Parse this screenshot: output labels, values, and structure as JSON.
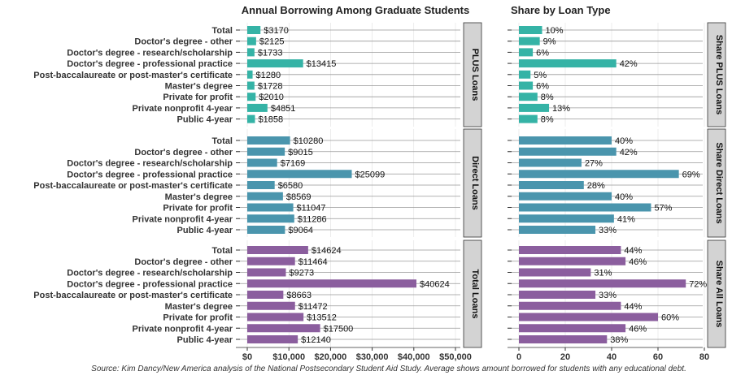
{
  "chart_data": [
    {
      "type": "bar",
      "orientation": "horizontal",
      "title": "Annual Borrowing Among Graduate Students",
      "categories": [
        "Total",
        "Doctor's degree - other",
        "Doctor's degree - research/scholarship",
        "Doctor's degree - professional practice",
        "Post-baccalaureate or post-master's certificate",
        "Master's degree",
        "Private for profit",
        "Private nonprofit 4-year",
        "Public 4-year"
      ],
      "series": [
        {
          "name": "PLUS Loans",
          "color": "#35b3a6",
          "values": [
            3170,
            2125,
            1733,
            13415,
            1280,
            1728,
            2010,
            4851,
            1858
          ],
          "labels": [
            "$3170",
            "$2125",
            "$1733",
            "$13415",
            "$1280",
            "$1728",
            "$2010",
            "$4851",
            "$1858"
          ]
        },
        {
          "name": "Direct Loans",
          "color": "#4a95ad",
          "values": [
            10280,
            9015,
            7169,
            25099,
            6580,
            8569,
            11047,
            11286,
            9064
          ],
          "labels": [
            "$10280",
            "$9015",
            "$7169",
            "$25099",
            "$6580",
            "$8569",
            "$11047",
            "$11286",
            "$9064"
          ]
        },
        {
          "name": "Total Loans",
          "color": "#8b5e9e",
          "values": [
            14624,
            11464,
            9273,
            40624,
            8663,
            11472,
            13512,
            17500,
            12140
          ],
          "labels": [
            "$14624",
            "$11464",
            "$9273",
            "$40624",
            "$8663",
            "$11472",
            "$13512",
            "$17500",
            "$12140"
          ]
        }
      ],
      "xlim": [
        0,
        50000
      ],
      "xticks": [
        0,
        10000,
        20000,
        30000,
        40000,
        50000
      ],
      "xtick_labels": [
        "$0",
        "$10,000",
        "$20,000",
        "$30,000",
        "$40,000",
        "$50,000"
      ]
    },
    {
      "type": "bar",
      "orientation": "horizontal",
      "title": "Share by Loan Type",
      "series": [
        {
          "name": "Share PLUS Loans",
          "color": "#35b3a6",
          "values": [
            10,
            9,
            6,
            42,
            5,
            6,
            8,
            13,
            8
          ],
          "labels": [
            "10%",
            "9%",
            "6%",
            "42%",
            "5%",
            "6%",
            "8%",
            "13%",
            "8%"
          ]
        },
        {
          "name": "Share Direct Loans",
          "color": "#4a95ad",
          "values": [
            40,
            42,
            27,
            69,
            28,
            40,
            57,
            41,
            33
          ],
          "labels": [
            "40%",
            "42%",
            "27%",
            "69%",
            "28%",
            "40%",
            "57%",
            "41%",
            "33%"
          ]
        },
        {
          "name": "Share All Loans",
          "color": "#8b5e9e",
          "values": [
            44,
            46,
            31,
            72,
            33,
            44,
            60,
            46,
            38
          ],
          "labels": [
            "44%",
            "46%",
            "31%",
            "72%",
            "33%",
            "44%",
            "60%",
            "46%",
            "38%"
          ]
        }
      ],
      "xlim": [
        0,
        80
      ],
      "xticks": [
        0,
        20,
        40,
        60,
        80
      ],
      "xtick_labels": [
        "0",
        "20",
        "40",
        "60",
        "80"
      ]
    }
  ],
  "caption": "Source: Kim Dancy/New America analysis of the National Postsecondary Student Aid Study. Average shows amount borrowed for students with any educational debt."
}
